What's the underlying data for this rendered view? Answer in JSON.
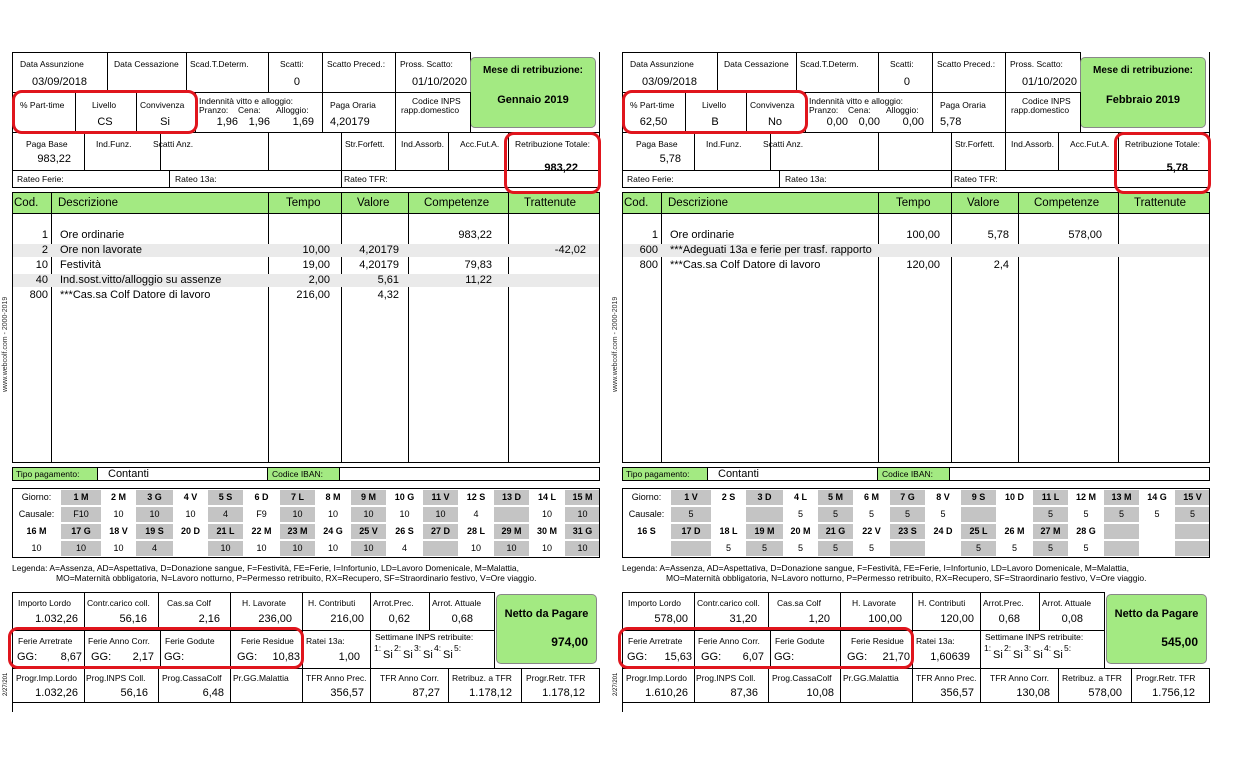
{
  "labels": {
    "assunzione": "Data Assunzione",
    "cessazione": "Data Cessazione",
    "scad": "Scad.T.Determ.",
    "scatti": "Scatti:",
    "scatto_prec": "Scatto Preced.:",
    "pross_scatto": "Pross. Scatto:",
    "mese": "Mese di retribuzione:",
    "part_time": "% Part-time",
    "livello": "Livello",
    "convivenza": "Convivenza",
    "indennita": "Indennità vitto e alloggio:",
    "pranzo": "Pranzo:",
    "cena": "Cena:",
    "alloggio": "Alloggio:",
    "paga_oraria": "Paga Oraria",
    "codice_inps": "Codice INPS",
    "rapp": "rapp.domestico",
    "paga_base": "Paga Base",
    "ind_funz": "Ind.Funz.",
    "scatti_anz": "Scatti Anz.",
    "str_forfett": "Str.Forfett.",
    "ind_assorb": "Ind.Assorb.",
    "acc_fut": "Acc.Fut.A.",
    "retrib_totale": "Retribuzione Totale:",
    "rateo_ferie": "Rateo Ferie:",
    "rateo_13a": "Rateo 13a:",
    "rateo_tfr": "Rateo TFR:",
    "col_cod": "Cod.",
    "col_desc": "Descrizione",
    "col_tempo": "Tempo",
    "col_valore": "Valore",
    "col_comp": "Competenze",
    "col_tratt": "Trattenute",
    "tipo_pag": "Tipo pagamento:",
    "iban": "Codice IBAN:",
    "giorno": "Giorno:",
    "causale": "Causale:",
    "legenda_1": "Legenda:  A=Assenza, AD=Aspettativa, D=Donazione sangue, F=Festività, FE=Ferie, I=Infortunio, LD=Lavoro Domenicale, M=Malattia,",
    "legenda_2": "MO=Maternità obbligatoria, N=Lavoro notturno, P=Permesso retribuito, RX=Recupero, SF=Straordinario festivo, V=Ore viaggio.",
    "imp_lordo": "Importo Lordo",
    "contr_carico": "Contr.carico coll.",
    "cas_colf": "Cas.sa Colf",
    "h_lavorate": "H. Lavorate",
    "h_contributi": "H. Contributi",
    "arrot_prec": "Arrot.Prec.",
    "arrot_att": "Arrot. Attuale",
    "netto": "Netto da Pagare",
    "ferie_arr": "Ferie Arretrate",
    "ferie_anno": "Ferie Anno Corr.",
    "ferie_god": "Ferie Godute",
    "ferie_res": "Ferie Residue",
    "ratei_13a": "Ratei 13a:",
    "settimane": "Settimane INPS retribuite:",
    "gg": "GG:",
    "progr_imp": "Progr.Imp.Lordo",
    "prog_inps": "Prog.INPS Coll.",
    "prog_cassa": "Prog.CassaColf",
    "pr_gg_mal": "Pr.GG.Malattia",
    "tfr_anno_prec": "TFR Anno Prec.",
    "tfr_anno_corr": "TFR Anno Corr.",
    "retrib_tfr": "Retribuz. a TFR",
    "progr_retr_tfr": "Progr.Retr. TFR",
    "watermark": "www.webcolf.com - 2000-2019",
    "side_code": "2/27/201"
  },
  "slips": [
    {
      "assunzione": "03/09/2018",
      "cessazione": "",
      "scad": "",
      "scatti": "0",
      "scatto_prec": "",
      "pross_scatto": "01/10/2020",
      "mese": "Gennaio 2019",
      "part_time": "",
      "livello": "CS",
      "convivenza": "Si",
      "pranzo": "1,96",
      "cena": "1,96",
      "alloggio": "1,69",
      "paga_oraria": "4,20179",
      "codice_inps": "",
      "paga_base": "983,22",
      "ind_funz": "",
      "scatti_anz": "",
      "str_forfett": "",
      "ind_assorb": "",
      "acc_fut": "",
      "retrib_totale": "983,22",
      "rows": [
        {
          "cod": "1",
          "desc": "Ore ordinarie",
          "tempo": "",
          "valore": "",
          "comp": "983,22",
          "tratt": ""
        },
        {
          "cod": "2",
          "desc": "Ore non lavorate",
          "tempo": "10,00",
          "valore": "4,20179",
          "comp": "",
          "tratt": "-42,02"
        },
        {
          "cod": "10",
          "desc": "Festività",
          "tempo": "19,00",
          "valore": "4,20179",
          "comp": "79,83",
          "tratt": ""
        },
        {
          "cod": "40",
          "desc": "Ind.sost.vitto/alloggio su assenze",
          "tempo": "2,00",
          "valore": "5,61",
          "comp": "11,22",
          "tratt": ""
        },
        {
          "cod": "800",
          "desc": "***Cas.sa Colf Datore di lavoro",
          "tempo": "216,00",
          "valore": "4,32",
          "comp": "",
          "tratt": ""
        }
      ],
      "tipo_pag": "Contanti",
      "iban": "",
      "cal_days_1": [
        "1 M",
        "2 M",
        "3 G",
        "4 V",
        "5 S",
        "6 D",
        "7 L",
        "8 M",
        "9 M",
        "10 G",
        "11 V",
        "12 S",
        "13 D",
        "14 L",
        "15 M"
      ],
      "cal_caus_1": [
        "F10",
        "10",
        "10",
        "10",
        "4",
        "F9",
        "10",
        "10",
        "10",
        "10",
        "10",
        "4",
        "",
        "10",
        "10"
      ],
      "cal_days_2": [
        "16 M",
        "17 G",
        "18 V",
        "19 S",
        "20 D",
        "21 L",
        "22 M",
        "23 M",
        "24 G",
        "25 V",
        "26 S",
        "27 D",
        "28 L",
        "29 M",
        "30 M",
        "31 G"
      ],
      "cal_caus_2": [
        "10",
        "10",
        "10",
        "4",
        "",
        "10",
        "10",
        "10",
        "10",
        "10",
        "4",
        "",
        "10",
        "10",
        "10",
        "10"
      ],
      "imp_lordo": "1.032,26",
      "contr_carico": "56,16",
      "cas_colf": "2,16",
      "h_lavorate": "236,00",
      "h_contributi": "216,00",
      "arrot_prec": "0,62",
      "arrot_att": "0,68",
      "netto": "974,00",
      "ferie_arr": "8,67",
      "ferie_anno": "2,17",
      "ferie_god": "",
      "ferie_res": "10,83",
      "ratei_13a": "1,00",
      "sett_nums": [
        "1:",
        "2:",
        "3:",
        "4:",
        "5:"
      ],
      "sett_vals": [
        "Si",
        "Si",
        "Si",
        "Si",
        ""
      ],
      "progr_imp": "1.032,26",
      "prog_inps": "56,16",
      "prog_cassa": "6,48",
      "pr_gg_mal": "",
      "tfr_anno_prec": "356,57",
      "tfr_anno_corr": "87,27",
      "retrib_tfr": "1.178,12",
      "progr_retr_tfr": "1.178,12"
    },
    {
      "assunzione": "03/09/2018",
      "cessazione": "",
      "scad": "",
      "scatti": "0",
      "scatto_prec": "",
      "pross_scatto": "01/10/2020",
      "mese": "Febbraio 2019",
      "part_time": "62,50",
      "livello": "B",
      "convivenza": "No",
      "pranzo": "0,00",
      "cena": "0,00",
      "alloggio": "0,00",
      "paga_oraria": "5,78",
      "codice_inps": "",
      "paga_base": "5,78",
      "ind_funz": "",
      "scatti_anz": "",
      "str_forfett": "",
      "ind_assorb": "",
      "acc_fut": "",
      "retrib_totale": "5,78",
      "rows": [
        {
          "cod": "1",
          "desc": "Ore ordinarie",
          "tempo": "100,00",
          "valore": "5,78",
          "comp": "578,00",
          "tratt": ""
        },
        {
          "cod": "600",
          "desc": "***Adeguati 13a e ferie per trasf. rapporto",
          "tempo": "",
          "valore": "",
          "comp": "",
          "tratt": ""
        },
        {
          "cod": "800",
          "desc": "***Cas.sa Colf Datore di lavoro",
          "tempo": "120,00",
          "valore": "2,4",
          "comp": "",
          "tratt": ""
        }
      ],
      "tipo_pag": "Contanti",
      "iban": "",
      "cal_days_1": [
        "1 V",
        "2 S",
        "3 D",
        "4 L",
        "5 M",
        "6 M",
        "7 G",
        "8 V",
        "9 S",
        "10 D",
        "11 L",
        "12 M",
        "13 M",
        "14 G",
        "15 V"
      ],
      "cal_caus_1": [
        "5",
        "",
        "",
        "5",
        "5",
        "5",
        "5",
        "5",
        "",
        "",
        "5",
        "5",
        "5",
        "5",
        "5"
      ],
      "cal_days_2": [
        "16 S",
        "17 D",
        "18 L",
        "19 M",
        "20 M",
        "21 G",
        "22 V",
        "23 S",
        "24 D",
        "25 L",
        "26 M",
        "27 M",
        "28 G",
        "",
        "",
        ""
      ],
      "cal_caus_2": [
        "",
        "",
        "5",
        "5",
        "5",
        "5",
        "5",
        "",
        "",
        "5",
        "5",
        "5",
        "5",
        "",
        "",
        ""
      ],
      "imp_lordo": "578,00",
      "contr_carico": "31,20",
      "cas_colf": "1,20",
      "h_lavorate": "100,00",
      "h_contributi": "120,00",
      "arrot_prec": "0,68",
      "arrot_att": "0,08",
      "netto": "545,00",
      "ferie_arr": "15,63",
      "ferie_anno": "6,07",
      "ferie_god": "",
      "ferie_res": "21,70",
      "ratei_13a": "1,60639",
      "sett_nums": [
        "1:",
        "2:",
        "3:",
        "4:",
        "5:"
      ],
      "sett_vals": [
        "Si",
        "Si",
        "Si",
        "Si",
        ""
      ],
      "progr_imp": "1.610,26",
      "prog_inps": "87,36",
      "prog_cassa": "10,08",
      "pr_gg_mal": "",
      "tfr_anno_prec": "356,57",
      "tfr_anno_corr": "130,08",
      "retrib_tfr": "578,00",
      "progr_retr_tfr": "1.756,12"
    }
  ]
}
